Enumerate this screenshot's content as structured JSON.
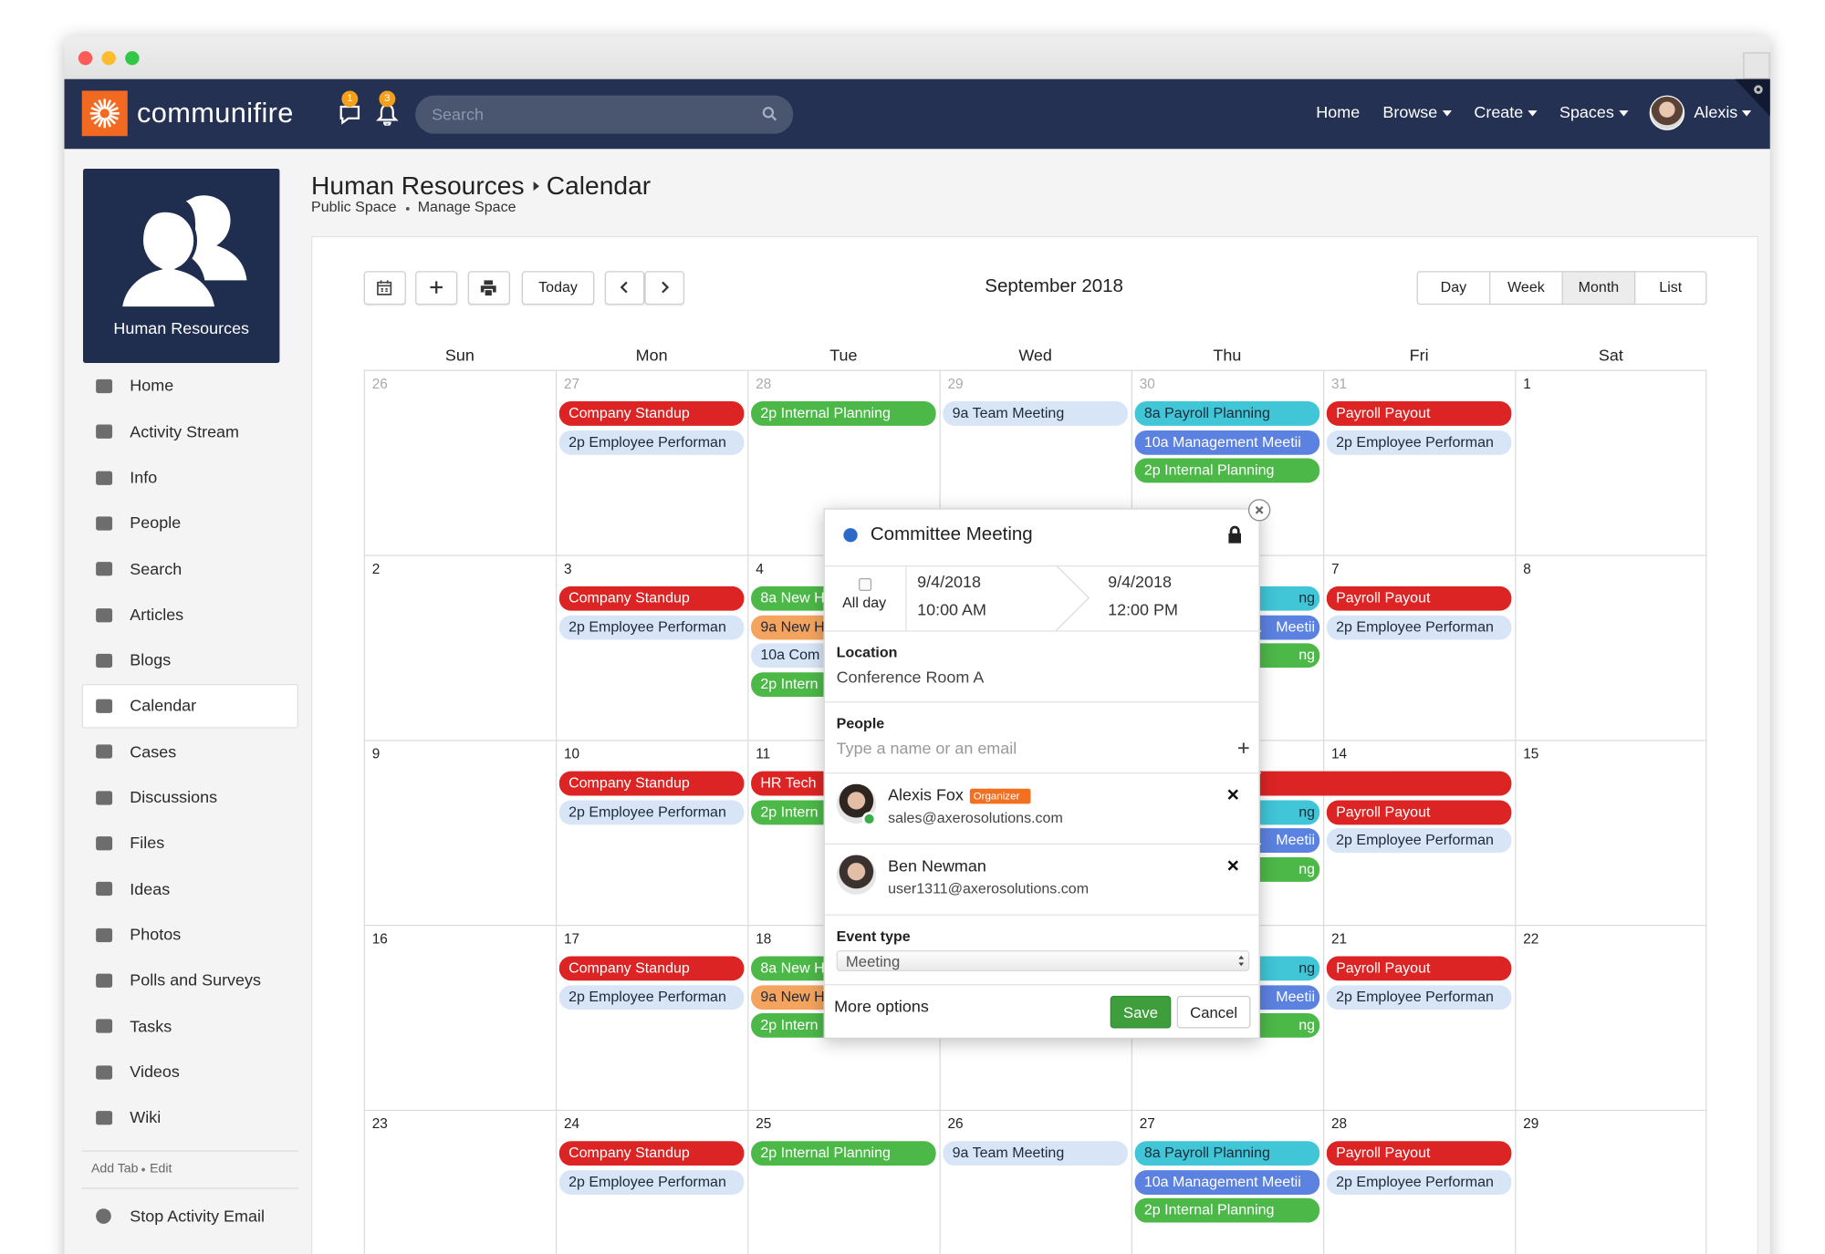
{
  "nav": {
    "brand": "communifire",
    "notifications": [
      "1",
      "3"
    ],
    "search_placeholder": "Search",
    "menu": [
      "Home",
      "Browse",
      "Create",
      "Spaces"
    ],
    "user": "Alexis"
  },
  "sidebar": {
    "space_name": "Human Resources",
    "items": [
      {
        "label": "Home"
      },
      {
        "label": "Activity Stream"
      },
      {
        "label": "Info"
      },
      {
        "label": "People"
      },
      {
        "label": "Search"
      },
      {
        "label": "Articles"
      },
      {
        "label": "Blogs"
      },
      {
        "label": "Calendar",
        "active": true
      },
      {
        "label": "Cases"
      },
      {
        "label": "Discussions"
      },
      {
        "label": "Files"
      },
      {
        "label": "Ideas"
      },
      {
        "label": "Photos"
      },
      {
        "label": "Polls and Surveys"
      },
      {
        "label": "Tasks"
      },
      {
        "label": "Videos"
      },
      {
        "label": "Wiki"
      }
    ],
    "footer_links": [
      "Add Tab",
      "Edit"
    ],
    "stop_email": "Stop Activity Email"
  },
  "header": {
    "breadcrumb": [
      "Human Resources",
      "Calendar"
    ],
    "links": [
      "Public Space",
      "Manage Space"
    ]
  },
  "toolbar": {
    "today": "Today",
    "title": "September 2018",
    "views": [
      {
        "label": "Day"
      },
      {
        "label": "Week"
      },
      {
        "label": "Month",
        "active": true
      },
      {
        "label": "List"
      }
    ]
  },
  "calendar": {
    "weekdays": [
      "Sun",
      "Mon",
      "Tue",
      "Wed",
      "Thu",
      "Fri",
      "Sat"
    ],
    "weeks": [
      {
        "days": [
          {
            "num": 26,
            "events": []
          },
          {
            "num": 27,
            "events": [
              {
                "label": "Company Standup",
                "color": "#dc2424"
              },
              {
                "label": "2p Employee Performan",
                "color": "#d8e5f7"
              }
            ]
          },
          {
            "num": 28,
            "events": [
              {
                "label": "2p Internal Planning",
                "color": "#4cb848"
              }
            ]
          },
          {
            "num": 29,
            "events": [
              {
                "label": "9a Team Meeting",
                "color": "#d8e5f7"
              }
            ]
          },
          {
            "num": 30,
            "events": [
              {
                "label": "8a Payroll Planning",
                "color": "#40c6d6"
              },
              {
                "label": "10a Management Meetii",
                "color": "#5b82e0"
              },
              {
                "label": "2p Internal Planning",
                "color": "#4cb848"
              }
            ]
          },
          {
            "num": 31,
            "events": [
              {
                "label": "Payroll Payout",
                "color": "#dc2424"
              },
              {
                "label": "2p Employee Performan",
                "color": "#d8e5f7"
              }
            ]
          },
          {
            "num": 1,
            "events": []
          }
        ]
      },
      {
        "days": [
          {
            "num": 2,
            "events": []
          },
          {
            "num": 3,
            "events": [
              {
                "label": "Company Standup",
                "color": "#dc2424"
              },
              {
                "label": "2p Employee Performan",
                "color": "#d8e5f7"
              }
            ]
          },
          {
            "num": 4,
            "events": [
              {
                "label": "8a New H",
                "color": "#4cb848"
              },
              {
                "label": "9a New H",
                "color": "#f4a45e"
              },
              {
                "label": "10a Com",
                "color": "#d8e5f7"
              },
              {
                "label": "2p Intern",
                "color": "#4cb848"
              }
            ]
          },
          {
            "num": null,
            "events": []
          },
          {
            "num": null,
            "events": [
              {
                "label": "ng",
                "color": "#40c6d6"
              },
              {
                "label": "Meetii",
                "color": "#5b82e0"
              },
              {
                "label": "ng",
                "color": "#4cb848"
              }
            ]
          },
          {
            "num": 7,
            "events": [
              {
                "label": "Payroll Payout",
                "color": "#dc2424"
              },
              {
                "label": "2p Employee Performan",
                "color": "#d8e5f7"
              }
            ]
          },
          {
            "num": 8,
            "events": []
          }
        ]
      },
      {
        "spans": [
          {
            "label": "HR Tech",
            "color": "#dc2424",
            "from": 11,
            "to": 14
          }
        ],
        "days": [
          {
            "num": 9,
            "events": []
          },
          {
            "num": 10,
            "events": [
              {
                "label": "Company Standup",
                "color": "#dc2424"
              },
              {
                "label": "2p Employee Performan",
                "color": "#d8e5f7"
              }
            ]
          },
          {
            "num": 11,
            "events": [
              {
                "label": "2p Intern",
                "color": "#4cb848"
              }
            ]
          },
          {
            "num": null,
            "events": []
          },
          {
            "num": null,
            "events": [
              {
                "label": "ng",
                "color": "#40c6d6"
              },
              {
                "label": "Meetii",
                "color": "#5b82e0"
              },
              {
                "label": "ng",
                "color": "#4cb848"
              }
            ]
          },
          {
            "num": 14,
            "events": [
              {
                "label": "Payroll Payout",
                "color": "#dc2424"
              },
              {
                "label": "2p Employee Performan",
                "color": "#d8e5f7"
              }
            ]
          },
          {
            "num": 15,
            "events": []
          }
        ]
      },
      {
        "days": [
          {
            "num": 16,
            "events": []
          },
          {
            "num": 17,
            "events": [
              {
                "label": "Company Standup",
                "color": "#dc2424"
              },
              {
                "label": "2p Employee Performan",
                "color": "#d8e5f7"
              }
            ]
          },
          {
            "num": 18,
            "events": [
              {
                "label": "8a New H",
                "color": "#4cb848"
              },
              {
                "label": "9a New H",
                "color": "#f4a45e"
              },
              {
                "label": "2p Intern",
                "color": "#4cb848"
              }
            ]
          },
          {
            "num": null,
            "events": []
          },
          {
            "num": null,
            "events": [
              {
                "label": "ng",
                "color": "#40c6d6"
              },
              {
                "label": "Meetii",
                "color": "#5b82e0"
              },
              {
                "label": "ng",
                "color": "#4cb848"
              }
            ]
          },
          {
            "num": 21,
            "events": [
              {
                "label": "Payroll Payout",
                "color": "#dc2424"
              },
              {
                "label": "2p Employee Performan",
                "color": "#d8e5f7"
              }
            ]
          },
          {
            "num": 22,
            "events": []
          }
        ]
      },
      {
        "days": [
          {
            "num": 23,
            "events": []
          },
          {
            "num": 24,
            "events": [
              {
                "label": "Company Standup",
                "color": "#dc2424"
              },
              {
                "label": "2p Employee Performan",
                "color": "#d8e5f7"
              }
            ]
          },
          {
            "num": 25,
            "events": [
              {
                "label": "2p Internal Planning",
                "color": "#4cb848"
              }
            ]
          },
          {
            "num": 26,
            "events": [
              {
                "label": "9a Team Meeting",
                "color": "#d8e5f7"
              }
            ]
          },
          {
            "num": 27,
            "events": [
              {
                "label": "8a Payroll Planning",
                "color": "#40c6d6"
              },
              {
                "label": "10a Management Meetii",
                "color": "#5b82e0"
              },
              {
                "label": "2p Internal Planning",
                "color": "#4cb848"
              }
            ]
          },
          {
            "num": 28,
            "events": [
              {
                "label": "Payroll Payout",
                "color": "#dc2424"
              },
              {
                "label": "2p Employee Performan",
                "color": "#d8e5f7"
              }
            ]
          },
          {
            "num": 29,
            "events": []
          }
        ]
      }
    ]
  },
  "popup": {
    "title": "Committee Meeting",
    "all_day": "All day",
    "start": {
      "date": "9/4/2018",
      "time": "10:00 AM"
    },
    "end": {
      "date": "9/4/2018",
      "time": "12:00 PM"
    },
    "location": {
      "label": "Location",
      "value": "Conference Room A"
    },
    "people": {
      "label": "People",
      "placeholder": "Type a name or an email",
      "attendees": [
        {
          "name": "Alexis Fox",
          "badge": "Organizer",
          "email": "sales@axerosolutions.com"
        },
        {
          "name": "Ben Newman",
          "email": "user1311@axerosolutions.com"
        }
      ]
    },
    "event_type": {
      "label": "Event type",
      "value": "Meeting"
    },
    "more_options": "More options",
    "save": "Save",
    "cancel": "Cancel"
  }
}
